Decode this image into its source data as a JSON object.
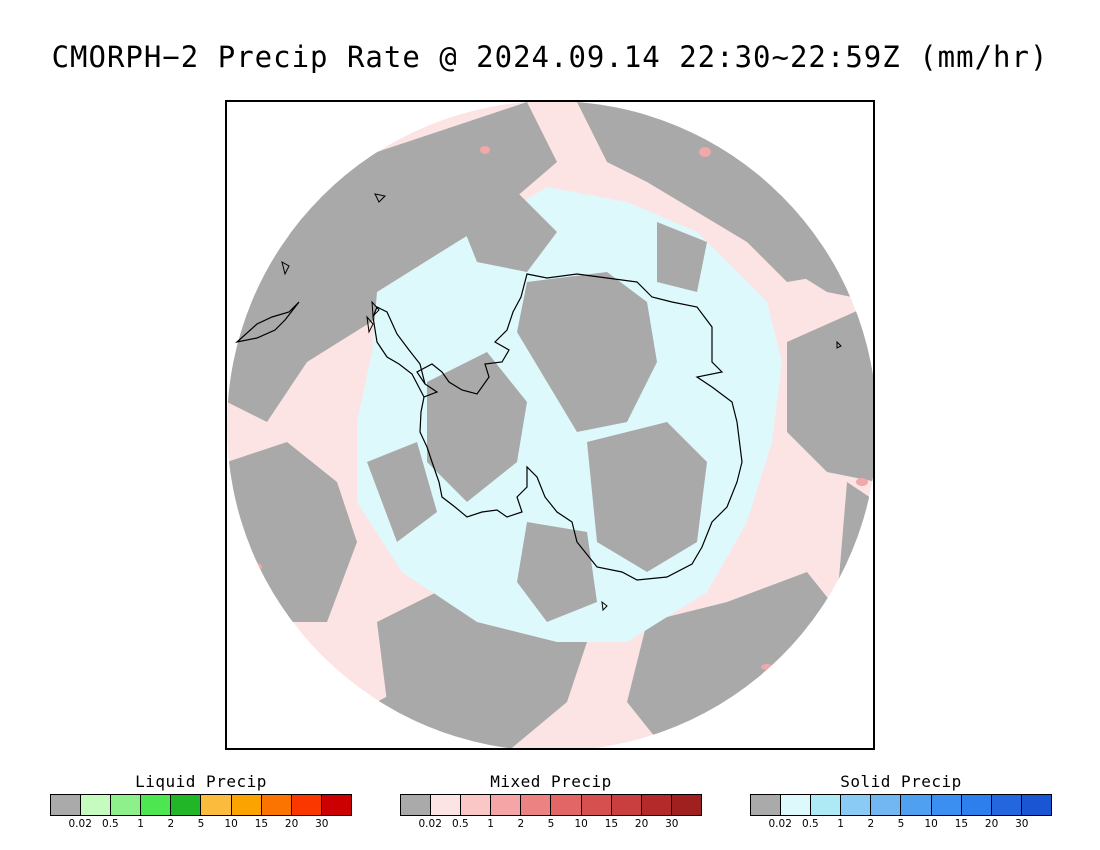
{
  "title": "CMORPH−2 Precip Rate @ 2024.09.14 22:30~22:59Z (mm/hr)",
  "map": {
    "projection": "south-polar-stereographic",
    "colors": {
      "no_rain": "#a9a9a9",
      "mixed_light": "#fde4e4",
      "solid_light": "#def9fb",
      "mixed_moderate": "#f1a8a8",
      "coastline": "#000000"
    }
  },
  "legends": [
    {
      "title": "Liquid Precip",
      "colors": [
        "#aaaaaa",
        "#c6fbc0",
        "#8ef08a",
        "#4de650",
        "#21b627",
        "#fbbb3c",
        "#fba300",
        "#fb7300",
        "#fb3700",
        "#cc0000"
      ],
      "ticks": [
        "0.02",
        "0.5",
        "1",
        "2",
        "5",
        "10",
        "15",
        "20",
        "30"
      ]
    },
    {
      "title": "Mixed Precip",
      "colors": [
        "#aaaaaa",
        "#fde4e4",
        "#fbc6c6",
        "#f5a5a5",
        "#ec8282",
        "#e26666",
        "#d75050",
        "#c93f3f",
        "#b42a2a",
        "#a02020"
      ],
      "ticks": [
        "0.02",
        "0.5",
        "1",
        "2",
        "5",
        "10",
        "15",
        "20",
        "30"
      ]
    },
    {
      "title": "Solid Precip",
      "colors": [
        "#aaaaaa",
        "#def9fb",
        "#aeeaf6",
        "#8acbf5",
        "#72b6f2",
        "#4fa0f0",
        "#3a8ff0",
        "#2d7fee",
        "#2466de",
        "#1a55d4"
      ],
      "ticks": [
        "0.02",
        "0.5",
        "1",
        "2",
        "5",
        "10",
        "15",
        "20",
        "30"
      ]
    }
  ]
}
